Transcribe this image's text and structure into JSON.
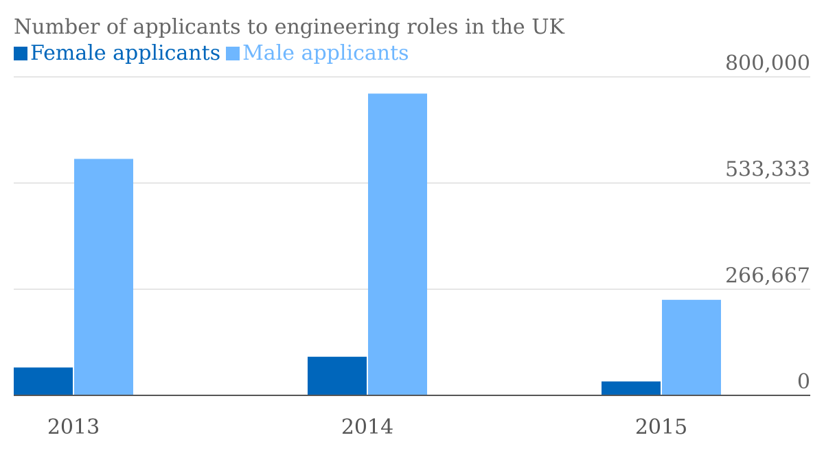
{
  "chart_data": {
    "type": "bar",
    "title": "Number of applicants to engineering roles in the UK",
    "categories": [
      "2013",
      "2014",
      "2015"
    ],
    "series": [
      {
        "name": "Female applicants",
        "color": "#0066bb",
        "values": [
          70000,
          97000,
          35000
        ]
      },
      {
        "name": "Male applicants",
        "color": "#6fb7ff",
        "values": [
          594000,
          758000,
          240000
        ]
      }
    ],
    "ylim": [
      0,
      800000
    ],
    "yticks": [
      "0",
      "266,667",
      "533,333",
      "800,000"
    ],
    "ytick_values": [
      0,
      266667,
      533333,
      800000
    ],
    "grid": true,
    "legend_position": "top-left",
    "xlabel": "",
    "ylabel": ""
  }
}
